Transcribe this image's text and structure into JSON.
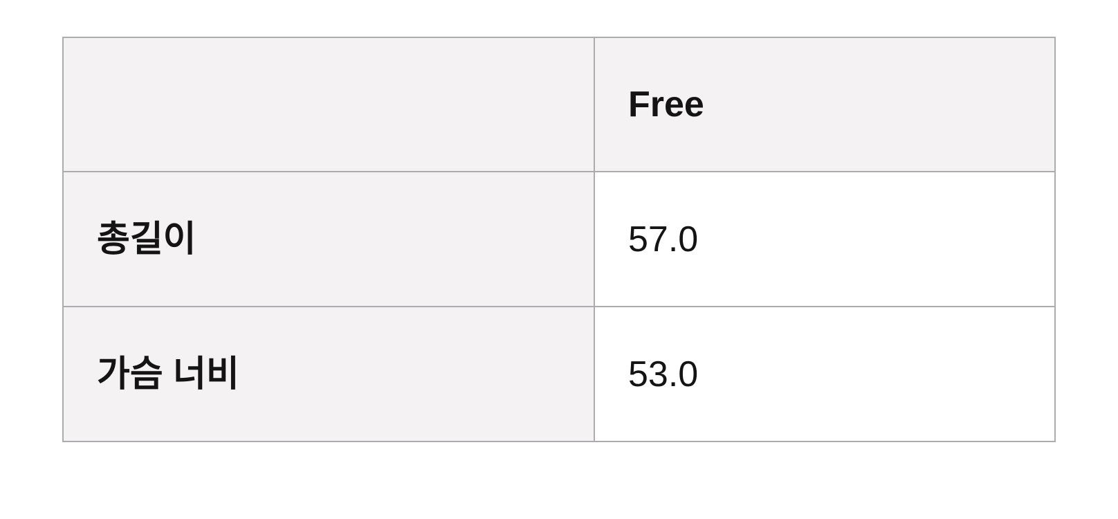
{
  "table": {
    "corner_label": "",
    "size_header": "Free",
    "rows": [
      {
        "label": "총길이",
        "value": "57.0"
      },
      {
        "label": "가슴 너비",
        "value": "53.0"
      }
    ]
  },
  "colors": {
    "page_bg": "#ffffff",
    "header_bg": "#f5f2f4",
    "label_bg": "#f5f2f4",
    "value_bg": "#ffffff",
    "border": "#adabaf",
    "text": "#141414"
  }
}
